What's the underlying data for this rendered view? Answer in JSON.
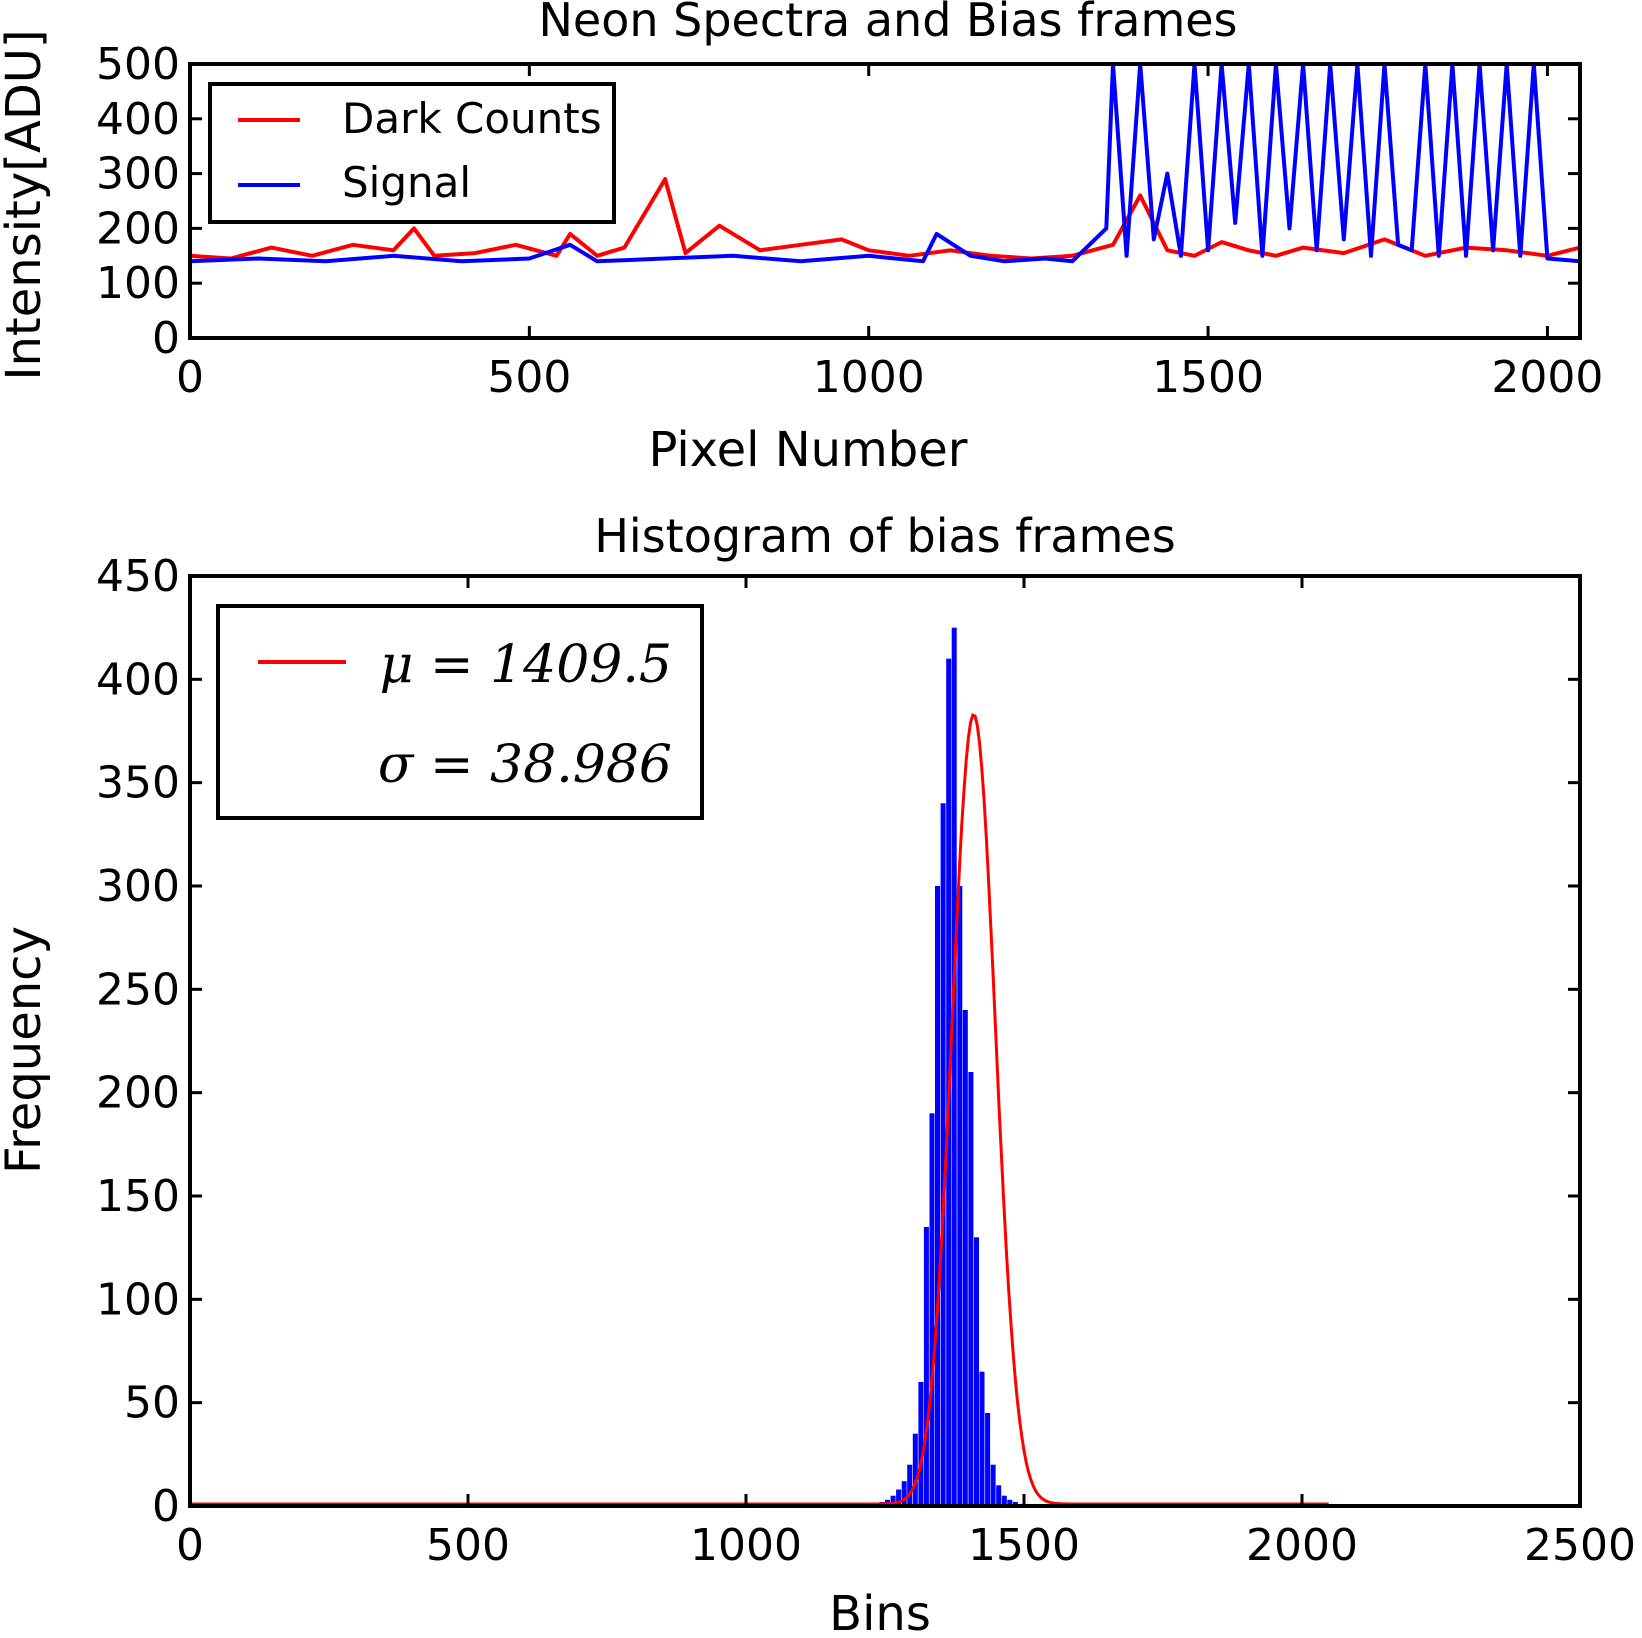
{
  "chart_data": [
    {
      "type": "line",
      "title": "Neon Spectra and Bias frames",
      "xlabel": "Pixel Number",
      "ylabel": "Intensity[ADU]",
      "xlim": [
        0,
        2048
      ],
      "ylim": [
        0,
        500
      ],
      "xticks": [
        "0",
        "500",
        "1000",
        "1500",
        "2000"
      ],
      "yticks": [
        "0",
        "100",
        "200",
        "300",
        "400",
        "500"
      ],
      "legend_position": "upper-left",
      "series": [
        {
          "name": "Dark Counts",
          "color": "#ff0000",
          "x": [
            0,
            60,
            120,
            180,
            240,
            300,
            330,
            360,
            420,
            480,
            540,
            560,
            600,
            640,
            700,
            730,
            780,
            840,
            900,
            960,
            1000,
            1060,
            1120,
            1180,
            1240,
            1300,
            1360,
            1400,
            1440,
            1480,
            1520,
            1560,
            1600,
            1640,
            1700,
            1760,
            1820,
            1880,
            1940,
            2000,
            2048
          ],
          "values": [
            150,
            145,
            165,
            150,
            170,
            160,
            200,
            150,
            155,
            170,
            150,
            190,
            150,
            165,
            290,
            155,
            205,
            160,
            170,
            180,
            160,
            150,
            160,
            150,
            145,
            150,
            170,
            260,
            160,
            150,
            175,
            160,
            150,
            165,
            155,
            180,
            150,
            165,
            160,
            150,
            165
          ]
        },
        {
          "name": "Signal",
          "color": "#0000ff",
          "x": [
            0,
            100,
            200,
            300,
            400,
            500,
            560,
            600,
            700,
            800,
            900,
            1000,
            1080,
            1100,
            1150,
            1200,
            1260,
            1300,
            1350,
            1360,
            1380,
            1400,
            1420,
            1440,
            1460,
            1480,
            1500,
            1520,
            1540,
            1560,
            1580,
            1600,
            1620,
            1640,
            1660,
            1680,
            1700,
            1720,
            1740,
            1760,
            1780,
            1800,
            1820,
            1840,
            1860,
            1880,
            1900,
            1920,
            1940,
            1960,
            1980,
            2000,
            2048
          ],
          "values": [
            140,
            145,
            140,
            150,
            140,
            145,
            170,
            140,
            145,
            150,
            140,
            150,
            140,
            190,
            150,
            140,
            145,
            140,
            200,
            500,
            150,
            500,
            180,
            300,
            150,
            500,
            160,
            500,
            210,
            500,
            150,
            500,
            200,
            500,
            160,
            500,
            180,
            500,
            150,
            500,
            170,
            160,
            500,
            150,
            500,
            150,
            500,
            160,
            500,
            150,
            500,
            145,
            140
          ]
        }
      ]
    },
    {
      "type": "bar",
      "title": "Histogram of bias frames",
      "xlabel": "Bins",
      "ylabel": "Frequency",
      "xlim": [
        0,
        2500
      ],
      "ylim": [
        0,
        450
      ],
      "xticks": [
        "0",
        "500",
        "1000",
        "1500",
        "2000",
        "2500"
      ],
      "yticks": [
        "0",
        "50",
        "100",
        "150",
        "200",
        "250",
        "300",
        "350",
        "400",
        "450"
      ],
      "legend_position": "upper-left",
      "histogram": {
        "color": "#0000ff",
        "bin_width": 10,
        "bins": [
          1240,
          1250,
          1260,
          1270,
          1280,
          1290,
          1300,
          1310,
          1320,
          1330,
          1340,
          1350,
          1360,
          1370,
          1380,
          1390,
          1400,
          1410,
          1420,
          1430,
          1440,
          1450,
          1460,
          1470,
          1480,
          1490,
          1500,
          1510,
          1520
        ],
        "counts": [
          2,
          3,
          5,
          8,
          12,
          20,
          35,
          60,
          135,
          190,
          300,
          340,
          410,
          425,
          300,
          240,
          210,
          130,
          65,
          45,
          20,
          10,
          5,
          3,
          2,
          1,
          1,
          0,
          0
        ]
      },
      "fit_curve": {
        "color": "#ff0000",
        "mu": 1409.5,
        "sigma": 38.986,
        "amplitude": 382,
        "range": [
          0,
          2050
        ]
      },
      "legend": {
        "mu_label": "μ = 1409.5",
        "sigma_label": "σ = 38.986"
      }
    }
  ]
}
